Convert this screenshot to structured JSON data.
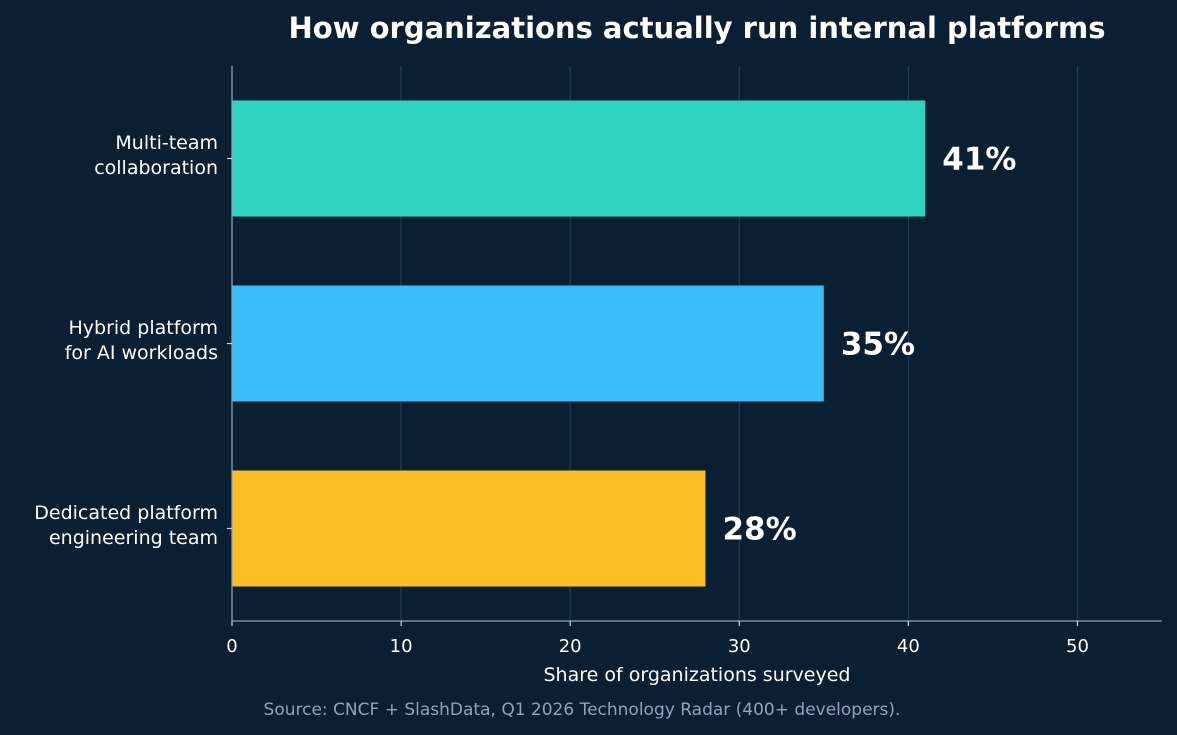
{
  "chart_data": {
    "type": "bar",
    "orientation": "horizontal",
    "title": "How organizations actually run internal platforms",
    "xlabel": "Share of organizations surveyed",
    "ylabel": "",
    "xlim": [
      0,
      55
    ],
    "xticks": [
      0,
      10,
      20,
      30,
      40,
      50
    ],
    "grid": true,
    "categories": [
      [
        "Multi-team",
        "collaboration"
      ],
      [
        "Hybrid platform",
        "for AI workloads"
      ],
      [
        "Dedicated platform",
        "engineering team"
      ]
    ],
    "values": [
      41,
      35,
      28
    ],
    "data_labels": [
      "41%",
      "35%",
      "28%"
    ],
    "colors": [
      "#2dd4bf",
      "#38bdf8",
      "#fbbf24"
    ],
    "background_color": "#0b1f33",
    "source": "Source: CNCF + SlashData, Q1 2026 Technology Radar (400+ developers)."
  }
}
